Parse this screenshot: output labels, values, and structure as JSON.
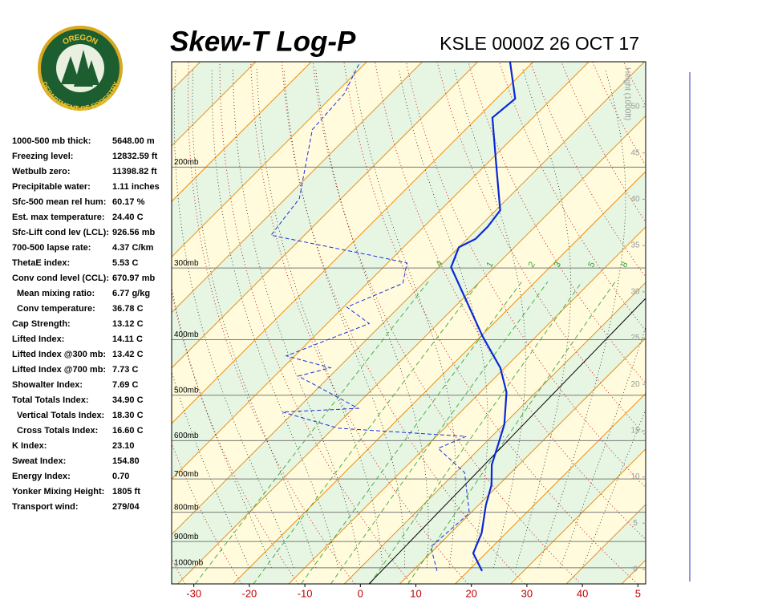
{
  "logo": {
    "top": "OREGON",
    "bottom": "DEPARTMENT OF FORESTRY"
  },
  "indices": [
    [
      "1000-500 mb thick:",
      "5648.00 m"
    ],
    [
      "Freezing level:",
      "12832.59 ft"
    ],
    [
      "Wetbulb zero:",
      "11398.82 ft"
    ],
    [
      "Precipitable water:",
      "1.11 inches"
    ],
    [
      "Sfc-500 mean rel hum:",
      "60.17 %"
    ],
    [
      "Est. max temperature:",
      "24.40 C"
    ],
    [
      "Sfc-Lift cond lev (LCL):",
      "926.56 mb"
    ],
    [
      "700-500 lapse rate:",
      "4.37 C/km"
    ],
    [
      "ThetaE index:",
      "5.53 C"
    ],
    [
      "Conv cond level (CCL):",
      "670.97 mb"
    ],
    [
      "Mean mixing ratio:",
      "6.77 g/kg"
    ],
    [
      "Conv temperature:",
      "36.78 C"
    ],
    [
      "Cap Strength:",
      "13.12 C"
    ],
    [
      "Lifted Index:",
      "14.11 C"
    ],
    [
      "Lifted Index @300 mb:",
      "13.42 C"
    ],
    [
      "Lifted Index @700 mb:",
      "7.73 C"
    ],
    [
      "Showalter Index:",
      "7.69 C"
    ],
    [
      "Total Totals Index:",
      "34.90 C"
    ],
    [
      "Vertical Totals Index:",
      "18.30 C"
    ],
    [
      "Cross Totals Index:",
      "16.60 C"
    ],
    [
      "K Index:",
      "23.10"
    ],
    [
      "Sweat Index:",
      "154.80"
    ],
    [
      "Energy Index:",
      "0.70"
    ],
    [
      "Yonker Mixing Height:",
      "1805 ft"
    ],
    [
      "Transport wind:",
      "279/04"
    ]
  ],
  "chart_data": {
    "type": "skewt",
    "title": "Skew-T Log-P",
    "subtitle": "KSLE 0000Z 26 OCT 17",
    "xlim": [
      -34,
      51.4
    ],
    "xticks": [
      -30,
      -20,
      -10,
      0,
      10,
      20,
      30,
      40,
      {
        "value": 50,
        "label": "5"
      }
    ],
    "ylim": [
      1067,
      131
    ],
    "yscale": "log",
    "yticks": [
      {
        "value": 200,
        "label": "200mb"
      },
      {
        "value": 300,
        "label": "300mb"
      },
      {
        "value": 400,
        "label": "400mb"
      },
      {
        "value": 500,
        "label": "500mb"
      },
      {
        "value": 600,
        "label": "600mb"
      },
      {
        "value": 700,
        "label": "700mb"
      },
      {
        "value": 800,
        "label": "800mb"
      },
      {
        "value": 900,
        "label": "900mb"
      },
      {
        "value": 1000,
        "label": "1000mb"
      }
    ],
    "y2_label": "Height (1000ft)",
    "y2lim": [
      -1.56,
      54.85
    ],
    "y2ticks": [
      0,
      5,
      10,
      15,
      20,
      25,
      30,
      35,
      40,
      45,
      50
    ],
    "mixing_ratio_lines": [
      {
        "value": 0.4,
        "label": ".4"
      },
      1,
      2,
      3,
      5,
      8
    ],
    "series": [
      {
        "color": "#0a28d8",
        "dash": "none",
        "width": 2.2,
        "pressure": [
          1013,
          943,
          870,
          777,
          717,
          661,
          609,
          562,
          494,
          448,
          394,
          299,
          276,
          267,
          254,
          238,
          193,
          164,
          152,
          131
        ],
        "values": [
          22.5,
          17.7,
          15.6,
          11.3,
          8.7,
          5.1,
          2.6,
          0.1,
          -5.3,
          -10.8,
          -19.8,
          -37.8,
          -40,
          -38.5,
          -38.5,
          -39.2,
          -49.4,
          -57.3,
          -56.6,
          -64.2
        ]
      },
      {
        "color": "#1a30e0",
        "dash": "5 3",
        "width": 1,
        "pressure": [
          1013,
          919,
          803,
          682,
          619,
          590,
          571,
          535,
          527,
          463,
          448,
          427,
          375,
          351,
          319,
          294,
          285,
          263,
          227,
          172,
          149,
          131
        ],
        "values": [
          14.4,
          8.9,
          9.8,
          1.6,
          -7.5,
          -4.6,
          -29.1,
          -42.1,
          -29.1,
          -45.7,
          -41.4,
          -51.5,
          -42.4,
          -49.4,
          -43.6,
          -46.5,
          -54.4,
          -76,
          -77.5,
          -87.6,
          -88.3,
          -91.2
        ]
      }
    ]
  }
}
